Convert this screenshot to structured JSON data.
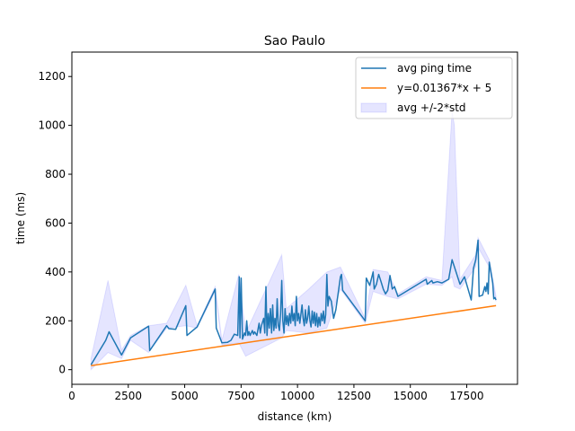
{
  "chart_data": {
    "type": "line",
    "title": "Sao Paulo",
    "xlabel": "distance (km)",
    "ylabel": "time (ms)",
    "xlim": [
      0,
      19750
    ],
    "ylim": [
      -60,
      1300
    ],
    "xticks": [
      0,
      2500,
      5000,
      7500,
      10000,
      12500,
      15000,
      17500
    ],
    "yticks": [
      0,
      200,
      400,
      600,
      800,
      1000,
      1200
    ],
    "grid": false,
    "legend_position": "top-right",
    "colors": {
      "avg": "#1f77b4",
      "fit": "#ff7f0e",
      "band": "#0000ff"
    },
    "legend": [
      {
        "label": "avg ping time",
        "kind": "line",
        "series": "avg"
      },
      {
        "label": "y=0.01367*x + 5",
        "kind": "line",
        "series": "fit"
      },
      {
        "label": "avg +/-2*std",
        "kind": "band",
        "series": "band"
      }
    ],
    "series": [
      {
        "key": "avg",
        "name": "avg ping time",
        "points": [
          [
            850,
            20
          ],
          [
            1500,
            120
          ],
          [
            1650,
            155
          ],
          [
            2200,
            60
          ],
          [
            2600,
            130
          ],
          [
            3400,
            178
          ],
          [
            3450,
            78
          ],
          [
            4200,
            180
          ],
          [
            4300,
            168
          ],
          [
            4600,
            165
          ],
          [
            5050,
            262
          ],
          [
            5100,
            140
          ],
          [
            5550,
            175
          ],
          [
            6350,
            330
          ],
          [
            6400,
            170
          ],
          [
            6650,
            110
          ],
          [
            6900,
            112
          ],
          [
            7050,
            120
          ],
          [
            7200,
            145
          ],
          [
            7350,
            140
          ],
          [
            7420,
            380
          ],
          [
            7450,
            130
          ],
          [
            7500,
            375
          ],
          [
            7560,
            125
          ],
          [
            7650,
            150
          ],
          [
            7700,
            140
          ],
          [
            7750,
            200
          ],
          [
            7800,
            140
          ],
          [
            7850,
            155
          ],
          [
            7900,
            140
          ],
          [
            8000,
            160
          ],
          [
            8050,
            145
          ],
          [
            8100,
            155
          ],
          [
            8200,
            140
          ],
          [
            8300,
            190
          ],
          [
            8350,
            150
          ],
          [
            8400,
            180
          ],
          [
            8500,
            210
          ],
          [
            8550,
            150
          ],
          [
            8600,
            340
          ],
          [
            8650,
            140
          ],
          [
            8700,
            230
          ],
          [
            8750,
            170
          ],
          [
            8800,
            250
          ],
          [
            8850,
            150
          ],
          [
            8900,
            265
          ],
          [
            8950,
            160
          ],
          [
            9000,
            210
          ],
          [
            9050,
            170
          ],
          [
            9100,
            290
          ],
          [
            9150,
            180
          ],
          [
            9200,
            160
          ],
          [
            9250,
            230
          ],
          [
            9300,
            365
          ],
          [
            9350,
            200
          ],
          [
            9400,
            150
          ],
          [
            9450,
            250
          ],
          [
            9500,
            185
          ],
          [
            9550,
            220
          ],
          [
            9600,
            180
          ],
          [
            9650,
            230
          ],
          [
            9700,
            190
          ],
          [
            9750,
            260
          ],
          [
            9800,
            200
          ],
          [
            9850,
            230
          ],
          [
            9900,
            180
          ],
          [
            9950,
            300
          ],
          [
            10000,
            200
          ],
          [
            10050,
            230
          ],
          [
            10100,
            190
          ],
          [
            10200,
            265
          ],
          [
            10250,
            210
          ],
          [
            10300,
            180
          ],
          [
            10350,
            245
          ],
          [
            10400,
            190
          ],
          [
            10450,
            210
          ],
          [
            10500,
            260
          ],
          [
            10550,
            200
          ],
          [
            10600,
            175
          ],
          [
            10650,
            240
          ],
          [
            10700,
            190
          ],
          [
            10750,
            235
          ],
          [
            10800,
            180
          ],
          [
            10850,
            230
          ],
          [
            10900,
            175
          ],
          [
            10950,
            215
          ],
          [
            11000,
            180
          ],
          [
            11050,
            230
          ],
          [
            11100,
            200
          ],
          [
            11150,
            240
          ],
          [
            11200,
            190
          ],
          [
            11250,
            225
          ],
          [
            11300,
            390
          ],
          [
            11350,
            260
          ],
          [
            11400,
            300
          ],
          [
            11500,
            280
          ],
          [
            11600,
            210
          ],
          [
            11700,
            245
          ],
          [
            11800,
            310
          ],
          [
            11900,
            380
          ],
          [
            11950,
            390
          ],
          [
            12000,
            325
          ],
          [
            13000,
            200
          ],
          [
            13050,
            375
          ],
          [
            13200,
            345
          ],
          [
            13350,
            400
          ],
          [
            13400,
            330
          ],
          [
            13500,
            350
          ],
          [
            13600,
            390
          ],
          [
            13700,
            360
          ],
          [
            13800,
            330
          ],
          [
            13900,
            310
          ],
          [
            14000,
            325
          ],
          [
            14100,
            385
          ],
          [
            14200,
            330
          ],
          [
            14300,
            340
          ],
          [
            14450,
            300
          ],
          [
            15700,
            370
          ],
          [
            15750,
            350
          ],
          [
            15950,
            365
          ],
          [
            16000,
            355
          ],
          [
            16200,
            360
          ],
          [
            16400,
            355
          ],
          [
            16700,
            370
          ],
          [
            16850,
            450
          ],
          [
            17200,
            350
          ],
          [
            17400,
            380
          ],
          [
            17700,
            285
          ],
          [
            17800,
            415
          ],
          [
            17900,
            450
          ],
          [
            18000,
            530
          ],
          [
            18050,
            300
          ],
          [
            18200,
            305
          ],
          [
            18300,
            340
          ],
          [
            18350,
            320
          ],
          [
            18400,
            355
          ],
          [
            18450,
            310
          ],
          [
            18500,
            440
          ],
          [
            18650,
            355
          ],
          [
            18700,
            290
          ],
          [
            18750,
            295
          ],
          [
            18800,
            285
          ]
        ]
      },
      {
        "key": "fit",
        "name": "y=0.01367*x + 5",
        "points": [
          [
            850,
            16.6
          ],
          [
            18800,
            262
          ]
        ]
      },
      {
        "key": "band",
        "name": "avg +/-2*std",
        "upper": [
          [
            850,
            45
          ],
          [
            1600,
            365
          ],
          [
            2200,
            80
          ],
          [
            2600,
            140
          ],
          [
            3400,
            180
          ],
          [
            4200,
            190
          ],
          [
            5050,
            345
          ],
          [
            5550,
            180
          ],
          [
            6350,
            340
          ],
          [
            6650,
            120
          ],
          [
            7400,
            390
          ],
          [
            7700,
            150
          ],
          [
            9300,
            470
          ],
          [
            9500,
            250
          ],
          [
            10500,
            330
          ],
          [
            11300,
            400
          ],
          [
            11900,
            420
          ],
          [
            13000,
            210
          ],
          [
            13350,
            410
          ],
          [
            14000,
            400
          ],
          [
            14450,
            310
          ],
          [
            15700,
            380
          ],
          [
            16400,
            365
          ],
          [
            16850,
            1060
          ],
          [
            16950,
            1000
          ],
          [
            17200,
            370
          ],
          [
            17900,
            470
          ],
          [
            18000,
            540
          ],
          [
            18500,
            450
          ],
          [
            18800,
            300
          ]
        ],
        "lower": [
          [
            850,
            0
          ],
          [
            1600,
            70
          ],
          [
            2200,
            45
          ],
          [
            2600,
            120
          ],
          [
            3400,
            70
          ],
          [
            4200,
            170
          ],
          [
            5050,
            180
          ],
          [
            5550,
            170
          ],
          [
            6350,
            320
          ],
          [
            6650,
            100
          ],
          [
            7400,
            110
          ],
          [
            7700,
            55
          ],
          [
            9300,
            130
          ],
          [
            9500,
            160
          ],
          [
            10500,
            150
          ],
          [
            11300,
            170
          ],
          [
            11900,
            330
          ],
          [
            13000,
            190
          ],
          [
            13350,
            320
          ],
          [
            14000,
            300
          ],
          [
            14450,
            290
          ],
          [
            15700,
            350
          ],
          [
            16400,
            345
          ],
          [
            16850,
            380
          ],
          [
            16950,
            340
          ],
          [
            17200,
            330
          ],
          [
            17900,
            420
          ],
          [
            18000,
            500
          ],
          [
            18500,
            420
          ],
          [
            18800,
            280
          ]
        ]
      }
    ]
  }
}
